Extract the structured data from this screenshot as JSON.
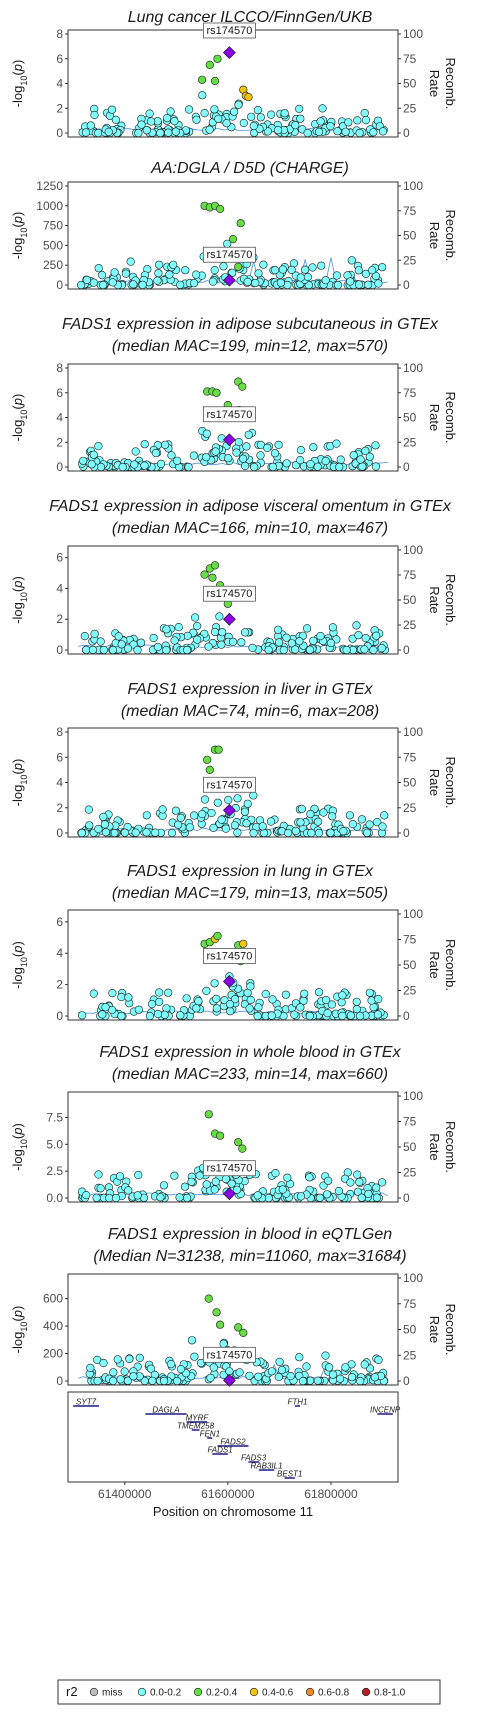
{
  "chart_data": {
    "type": "scatter",
    "lead_snp": "rs174570",
    "chromosome": "11",
    "y_axis_label": "-log10(p)",
    "y2_axis_label": "Recomb. Rate",
    "y2_ticks": [
      0,
      25,
      50,
      75,
      100
    ],
    "x_axis_label": "Position on chromosome 11",
    "x_ticks": [
      61400000,
      61600000,
      61800000
    ],
    "xlim": [
      61290000,
      61930000
    ],
    "lead_position": 61603000,
    "panels": [
      {
        "title": "Lung cancer ILCCO/FinnGen/UKB",
        "subtitle": "",
        "ylim": [
          0,
          8
        ],
        "yticks": [
          0,
          2,
          4,
          6,
          8
        ],
        "lead_value": 6.5,
        "peak": [
          {
            "x": 61550000,
            "y": 4.3
          },
          {
            "x": 61565000,
            "y": 5.5
          },
          {
            "x": 61575000,
            "y": 4.2
          },
          {
            "x": 61580000,
            "y": 6.0
          },
          {
            "x": 61630000,
            "y": 3.5
          },
          {
            "x": 61635000,
            "y": 3.0
          },
          {
            "x": 61640000,
            "y": 2.9
          }
        ]
      },
      {
        "title": "AA:DGLA / D5D (CHARGE)",
        "subtitle": "",
        "ylim": [
          0,
          1250
        ],
        "yticks": [
          0,
          250,
          500,
          750,
          1000,
          1250
        ],
        "lead_value": 60,
        "peak": [
          {
            "x": 61555000,
            "y": 1000
          },
          {
            "x": 61565000,
            "y": 980
          },
          {
            "x": 61575000,
            "y": 1000
          },
          {
            "x": 61585000,
            "y": 960
          },
          {
            "x": 61625000,
            "y": 780
          },
          {
            "x": 61610000,
            "y": 580
          },
          {
            "x": 61620000,
            "y": 230
          }
        ]
      },
      {
        "title": "FADS1 expression in adipose subcutaneous in GTEx",
        "subtitle": "(median MAC=199, min=12, max=570)",
        "ylim": [
          0,
          8
        ],
        "yticks": [
          0,
          2,
          4,
          6,
          8
        ],
        "lead_value": 2.2,
        "peak": [
          {
            "x": 61560000,
            "y": 6.1
          },
          {
            "x": 61570000,
            "y": 6.1
          },
          {
            "x": 61578000,
            "y": 6.0
          },
          {
            "x": 61600000,
            "y": 5.0
          },
          {
            "x": 61620000,
            "y": 6.9
          },
          {
            "x": 61628000,
            "y": 6.5
          },
          {
            "x": 61622000,
            "y": 4.6
          }
        ]
      },
      {
        "title": "FADS1 expression in adipose visceral omentum in GTEx",
        "subtitle": "(median MAC=166, min=10, max=467)",
        "ylim": [
          0,
          6.5
        ],
        "yticks": [
          0,
          2,
          4,
          6
        ],
        "lead_value": 2.0,
        "peak": [
          {
            "x": 61555000,
            "y": 4.9
          },
          {
            "x": 61565000,
            "y": 5.3
          },
          {
            "x": 61575000,
            "y": 5.5
          },
          {
            "x": 61570000,
            "y": 4.7
          },
          {
            "x": 61585000,
            "y": 4.2
          },
          {
            "x": 61600000,
            "y": 3.0
          }
        ]
      },
      {
        "title": "FADS1 expression in liver in GTEx",
        "subtitle": "(median MAC=74, min=6, max=208)",
        "ylim": [
          0,
          8
        ],
        "yticks": [
          0,
          2,
          4,
          6,
          8
        ],
        "lead_value": 1.8,
        "peak": [
          {
            "x": 61560000,
            "y": 5.8
          },
          {
            "x": 61565000,
            "y": 5.0
          },
          {
            "x": 61575000,
            "y": 6.6
          },
          {
            "x": 61582000,
            "y": 6.6
          },
          {
            "x": 61620000,
            "y": 3.8
          },
          {
            "x": 61628000,
            "y": 3.6
          }
        ]
      },
      {
        "title": "FADS1 expression in lung in GTEx",
        "subtitle": "(median MAC=179, min=13, max=505)",
        "ylim": [
          0,
          6.5
        ],
        "yticks": [
          0,
          2,
          4,
          6
        ],
        "lead_value": 2.2,
        "peak": [
          {
            "x": 61555000,
            "y": 4.6
          },
          {
            "x": 61565000,
            "y": 4.7
          },
          {
            "x": 61575000,
            "y": 4.9
          },
          {
            "x": 61580000,
            "y": 5.1
          },
          {
            "x": 61620000,
            "y": 4.5
          },
          {
            "x": 61630000,
            "y": 4.6
          },
          {
            "x": 61625000,
            "y": 3.5
          }
        ]
      },
      {
        "title": "FADS1 expression in whole blood in GTEx",
        "subtitle": "(median MAC=233, min=14, max=660)",
        "ylim": [
          0,
          9.5
        ],
        "yticks": [
          0.0,
          2.5,
          5.0,
          7.5
        ],
        "lead_value": 0.4,
        "peak": [
          {
            "x": 61563000,
            "y": 7.8
          },
          {
            "x": 61575000,
            "y": 6.0
          },
          {
            "x": 61585000,
            "y": 5.8
          },
          {
            "x": 61620000,
            "y": 5.2
          },
          {
            "x": 61628000,
            "y": 4.6
          }
        ]
      },
      {
        "title": "FADS1 expression in blood in eQTLGen",
        "subtitle": "(Median N=31238, min=11060, max=31684)",
        "ylim": [
          0,
          750
        ],
        "yticks": [
          0,
          200,
          400,
          600
        ],
        "lead_value": 5,
        "peak": [
          {
            "x": 61563000,
            "y": 600
          },
          {
            "x": 61578000,
            "y": 500
          },
          {
            "x": 61585000,
            "y": 410
          },
          {
            "x": 61620000,
            "y": 390
          },
          {
            "x": 61630000,
            "y": 350
          }
        ]
      }
    ],
    "genes": [
      {
        "name": "SYT7",
        "start": 61300000,
        "end": 61350000,
        "row": 0
      },
      {
        "name": "DAGLA",
        "start": 61440000,
        "end": 61520000,
        "row": 1
      },
      {
        "name": "MYRF",
        "start": 61520000,
        "end": 61560000,
        "row": 2
      },
      {
        "name": "TMEM258",
        "start": 61530000,
        "end": 61545000,
        "row": 3
      },
      {
        "name": "FEN1",
        "start": 61560000,
        "end": 61570000,
        "row": 4
      },
      {
        "name": "FADS2",
        "start": 61580000,
        "end": 61640000,
        "row": 5
      },
      {
        "name": "FADS1",
        "start": 61570000,
        "end": 61600000,
        "row": 6
      },
      {
        "name": "FADS3",
        "start": 61640000,
        "end": 61660000,
        "row": 7
      },
      {
        "name": "RAB3IL1",
        "start": 61660000,
        "end": 61690000,
        "row": 8
      },
      {
        "name": "BEST1",
        "start": 61710000,
        "end": 61730000,
        "row": 9
      },
      {
        "name": "FTH1",
        "start": 61730000,
        "end": 61740000,
        "row": 0
      },
      {
        "name": "INCENP",
        "start": 61890000,
        "end": 61920000,
        "row": 1
      }
    ],
    "legend": {
      "title": "r2",
      "items": [
        {
          "label": "miss",
          "color": "#BEBEBE"
        },
        {
          "label": "0.0-0.2",
          "color": "#7FFFFF"
        },
        {
          "label": "0.2-0.4",
          "color": "#66DD44"
        },
        {
          "label": "0.4-0.6",
          "color": "#F2C30F"
        },
        {
          "label": "0.6-0.8",
          "color": "#F08A28"
        },
        {
          "label": "0.8-1.0",
          "color": "#B22222"
        }
      ],
      "lead_color": "#8A00E6",
      "recomb_color": "#4A90E2"
    }
  }
}
